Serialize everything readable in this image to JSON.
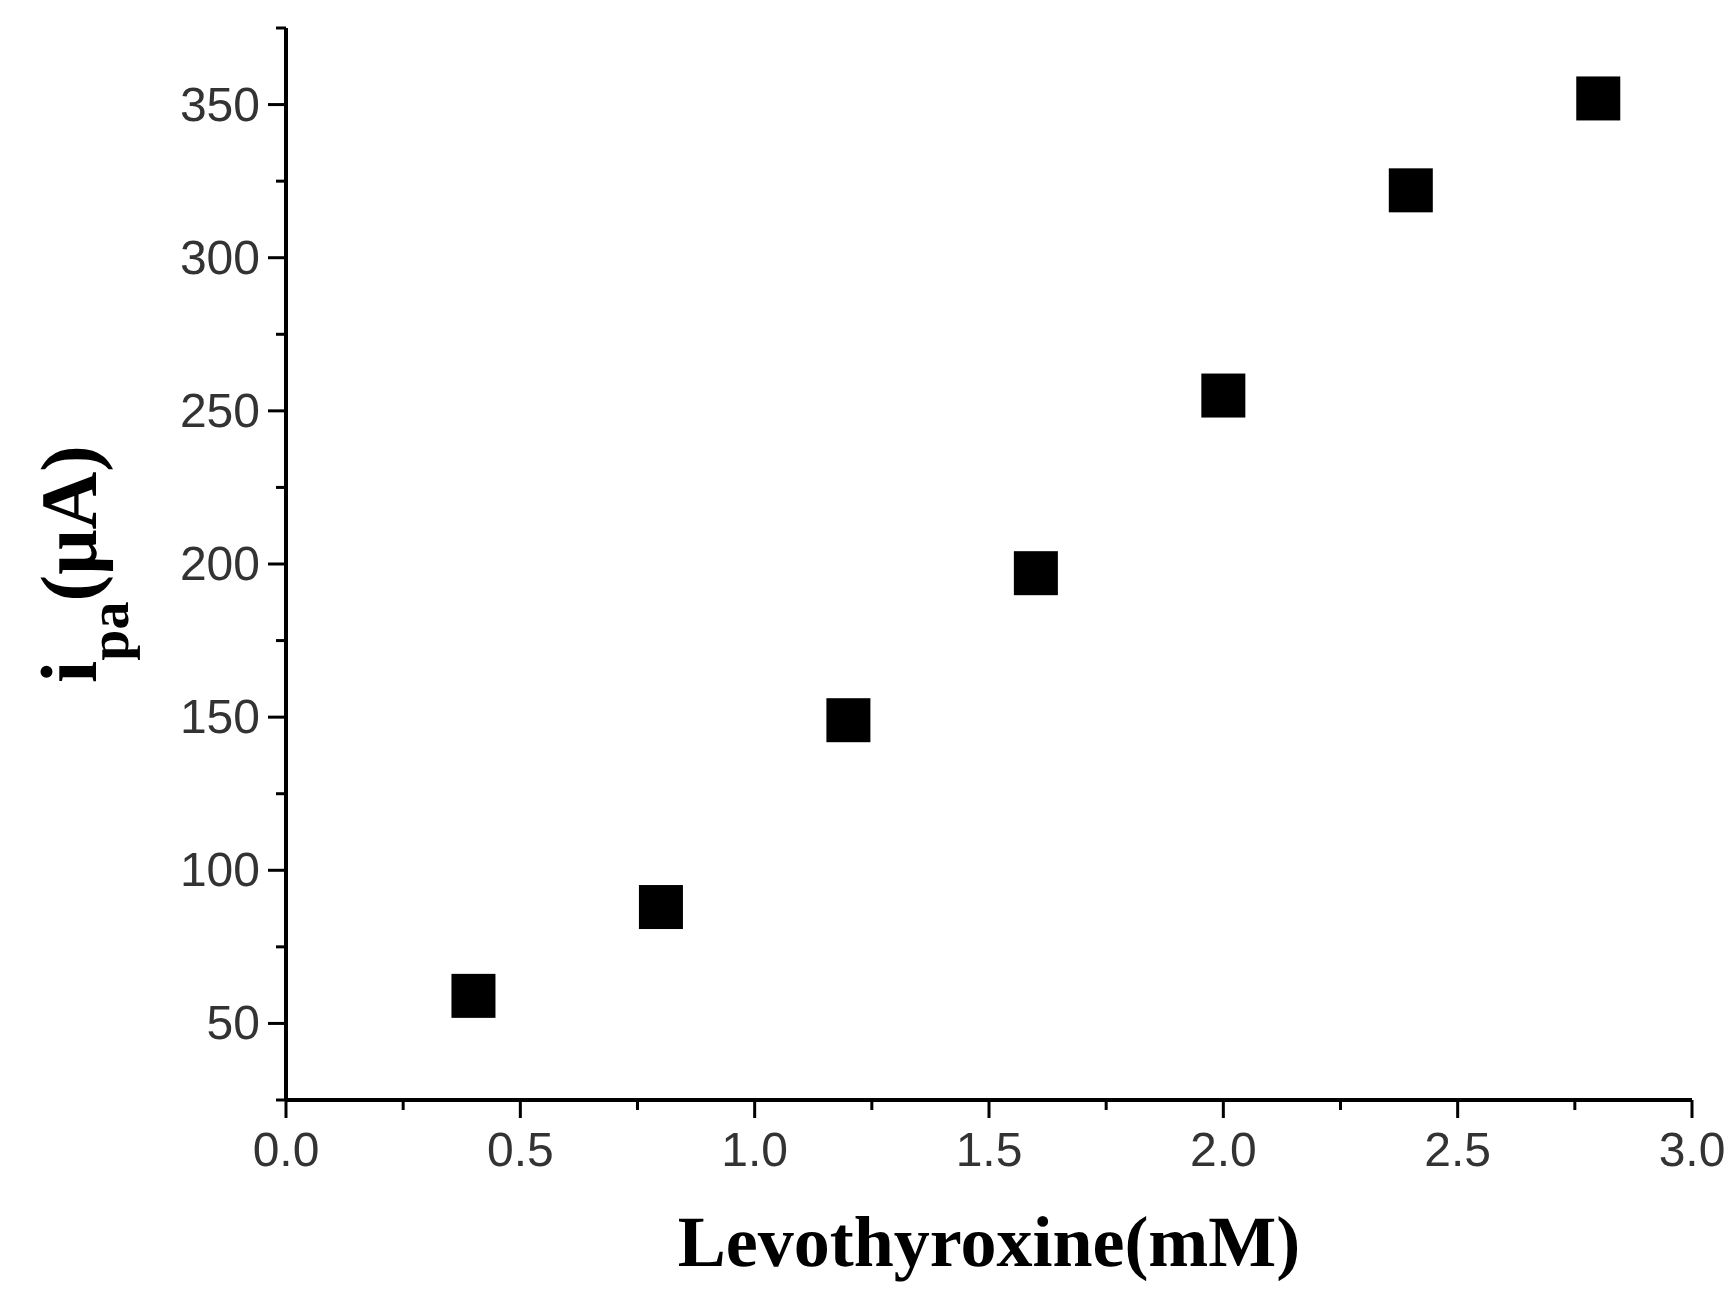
{
  "chart_data": {
    "type": "scatter",
    "xlabel": "Levothyroxine(mM)",
    "ylabel": "i$_{pa}$(μA)",
    "x": [
      0.4,
      0.8,
      1.2,
      1.6,
      2.0,
      2.4,
      2.8
    ],
    "series": [
      {
        "color": "#000000",
        "values": [
          59,
          88,
          149,
          197,
          255,
          322,
          352
        ]
      }
    ],
    "marker": "square",
    "xlim": [
      0,
      3
    ],
    "xticks": [
      {
        "value": 0,
        "label": "0.0"
      },
      {
        "value": 0.25,
        "label": null
      },
      0.5,
      {
        "value": 0.75,
        "label": null
      },
      {
        "value": 1,
        "label": "1.0"
      },
      {
        "value": 1.25,
        "label": null
      },
      1.5,
      {
        "value": 1.75,
        "label": null
      },
      {
        "value": 2,
        "label": "2.0"
      },
      {
        "value": 2.25,
        "label": null
      },
      2.5,
      {
        "value": 2.75,
        "label": null
      },
      {
        "value": 3,
        "label": "3.0"
      }
    ],
    "ylim": [
      25,
      375
    ],
    "yticks": [
      {
        "value": 25,
        "label": null
      },
      50,
      {
        "value": 75,
        "label": null
      },
      100,
      {
        "value": 125,
        "label": null
      },
      150,
      {
        "value": 175,
        "label": null
      },
      200,
      {
        "value": 225,
        "label": null
      },
      250,
      {
        "value": 275,
        "label": null
      },
      300,
      {
        "value": 325,
        "label": null
      },
      350,
      {
        "value": 375,
        "label": null
      }
    ]
  }
}
